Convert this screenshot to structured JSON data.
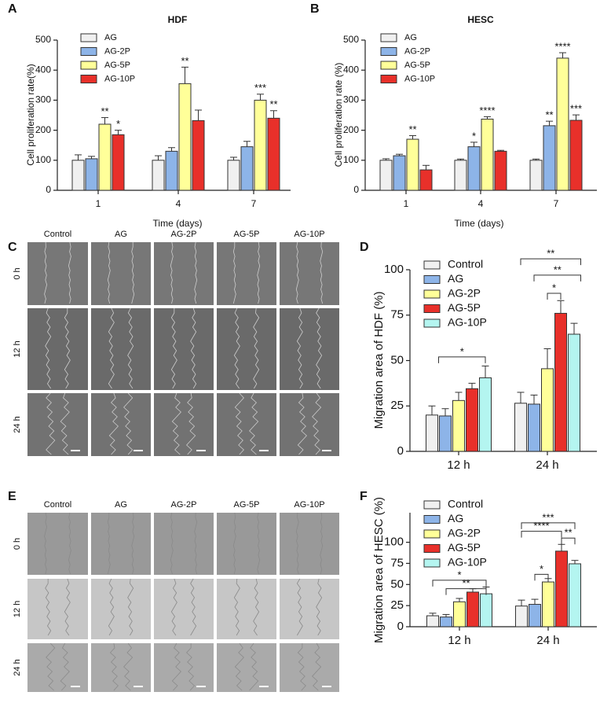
{
  "chart_data": [
    {
      "type": "bar",
      "panel": "A",
      "title": "HDF",
      "x_label": "Time (days)",
      "y_label": "Cell proliferation rate(%)",
      "categories": [
        "1",
        "4",
        "7"
      ],
      "ylim": [
        0,
        500
      ],
      "yticks": [
        0,
        100,
        200,
        300,
        400,
        500
      ],
      "series": [
        {
          "name": "AG",
          "color": "#f0f0f0",
          "values": [
            100,
            100,
            100
          ],
          "errors": [
            18,
            15,
            10
          ],
          "annotations": [
            null,
            null,
            null
          ]
        },
        {
          "name": "AG-2P",
          "color": "#8db4e8",
          "values": [
            105,
            130,
            145
          ],
          "errors": [
            8,
            12,
            18
          ],
          "annotations": [
            null,
            null,
            null
          ]
        },
        {
          "name": "AG-5P",
          "color": "#ffff99",
          "values": [
            220,
            355,
            300
          ],
          "errors": [
            22,
            55,
            20
          ],
          "annotations": [
            "**",
            "**",
            "***"
          ]
        },
        {
          "name": "AG-10P",
          "color": "#e8302a",
          "values": [
            185,
            232,
            240
          ],
          "errors": [
            15,
            35,
            25
          ],
          "annotations": [
            "*",
            null,
            "**"
          ]
        }
      ]
    },
    {
      "type": "bar",
      "panel": "B",
      "title": "HESC",
      "x_label": "Time (days)",
      "y_label": "Cell proliferation rate (%)",
      "categories": [
        "1",
        "4",
        "7"
      ],
      "ylim": [
        0,
        500
      ],
      "yticks": [
        0,
        100,
        200,
        300,
        400,
        500
      ],
      "series": [
        {
          "name": "AG",
          "color": "#f0f0f0",
          "values": [
            100,
            100,
            100
          ],
          "errors": [
            5,
            4,
            4
          ],
          "annotations": [
            null,
            null,
            null
          ]
        },
        {
          "name": "AG-2P",
          "color": "#8db4e8",
          "values": [
            115,
            145,
            215
          ],
          "errors": [
            5,
            15,
            15
          ],
          "annotations": [
            null,
            "*",
            "**"
          ]
        },
        {
          "name": "AG-5P",
          "color": "#ffff99",
          "values": [
            170,
            237,
            440
          ],
          "errors": [
            12,
            8,
            18
          ],
          "annotations": [
            "**",
            "****",
            "****"
          ]
        },
        {
          "name": "AG-10P",
          "color": "#e8302a",
          "values": [
            68,
            130,
            233
          ],
          "errors": [
            15,
            3,
            18
          ],
          "annotations": [
            null,
            null,
            "***"
          ]
        }
      ]
    },
    {
      "type": "bar",
      "panel": "D",
      "y_label": "Migration area of HDF (%)",
      "categories": [
        "12 h",
        "24 h"
      ],
      "ylim": [
        0,
        100
      ],
      "yticks": [
        0,
        25,
        50,
        75,
        100
      ],
      "series": [
        {
          "name": "Control",
          "color": "#f0f0f0",
          "values": [
            20,
            26.5
          ],
          "errors": [
            5,
            6
          ]
        },
        {
          "name": "AG",
          "color": "#8db4e8",
          "values": [
            19.5,
            26
          ],
          "errors": [
            4,
            5
          ]
        },
        {
          "name": "AG-2P",
          "color": "#ffff99",
          "values": [
            28,
            45.5
          ],
          "errors": [
            4.5,
            11
          ]
        },
        {
          "name": "AG-5P",
          "color": "#e8302a",
          "values": [
            34.5,
            76
          ],
          "errors": [
            3,
            7
          ]
        },
        {
          "name": "AG-10P",
          "color": "#b4f5f0",
          "values": [
            40.5,
            64.5
          ],
          "errors": [
            6.5,
            6
          ]
        }
      ],
      "brackets": [
        "*",
        "*",
        "**",
        "**"
      ]
    },
    {
      "type": "bar",
      "panel": "F",
      "y_label": "Migration area of HESC (%)",
      "categories": [
        "12 h",
        "24 h"
      ],
      "ylim": [
        0,
        135
      ],
      "yticks": [
        0,
        25,
        50,
        75,
        100
      ],
      "series": [
        {
          "name": "Control",
          "color": "#f0f0f0",
          "values": [
            13,
            24.5
          ],
          "errors": [
            3,
            7
          ]
        },
        {
          "name": "AG",
          "color": "#8db4e8",
          "values": [
            11.5,
            26.5
          ],
          "errors": [
            3,
            6
          ]
        },
        {
          "name": "AG-2P",
          "color": "#ffff99",
          "values": [
            29.5,
            53
          ],
          "errors": [
            4,
            4
          ]
        },
        {
          "name": "AG-5P",
          "color": "#e8302a",
          "values": [
            41,
            89.5
          ],
          "errors": [
            4,
            8
          ]
        },
        {
          "name": "AG-10P",
          "color": "#b4f5f0",
          "values": [
            39,
            74.5
          ],
          "errors": [
            8,
            4
          ]
        }
      ],
      "brackets": [
        "**",
        "*",
        "*",
        "**",
        "****",
        "***"
      ]
    }
  ],
  "image_panels": [
    {
      "panel": "C",
      "columns": [
        "Control",
        "AG",
        "AG-2P",
        "AG-5P",
        "AG-10P"
      ],
      "rows": [
        "0 h",
        "12 h",
        "24 h"
      ]
    },
    {
      "panel": "E",
      "columns": [
        "Control",
        "AG",
        "AG-2P",
        "AG-5P",
        "AG-10P"
      ],
      "rows": [
        "0 h",
        "12 h",
        "24 h"
      ]
    }
  ]
}
